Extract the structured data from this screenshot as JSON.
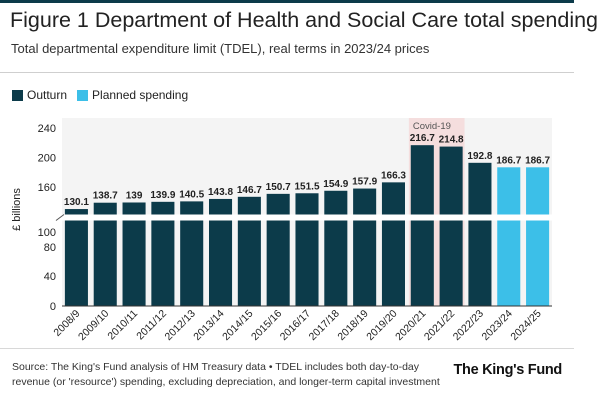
{
  "header": {
    "title": "Figure 1 Department of Health and Social Care total spending",
    "subtitle": "Total departmental expenditure limit (TDEL), real terms in 2023/24 prices"
  },
  "legend": {
    "items": [
      {
        "label": "Outturn",
        "color": "#0c3b4a"
      },
      {
        "label": "Planned spending",
        "color": "#3cbfe8"
      }
    ]
  },
  "colors": {
    "outturn": "#0c3b4a",
    "planned": "#3cbfe8",
    "plot_bg": "#f4f4f4",
    "highlight": "#f5dede"
  },
  "footer": {
    "source": "Source: The King's Fund analysis of HM Treasury data • TDEL includes both day-to-day revenue (or 'resource') spending, excluding depreciation, and longer-term capital investment",
    "logo": "The King's Fund"
  },
  "chart_data": {
    "type": "bar",
    "title": "Figure 1 Department of Health and Social Care total spending",
    "subtitle": "Total departmental expenditure limit (TDEL), real terms in 2023/24 prices",
    "ylabel": "£ billions",
    "xlabel": "",
    "yticks": [
      0,
      40,
      80,
      100,
      160,
      200,
      240
    ],
    "ylim": [
      0,
      240
    ],
    "axis_break": true,
    "grid": false,
    "legend_position": "top-left",
    "categories": [
      "2008/9",
      "2009/10",
      "2010/11",
      "2011/12",
      "2012/13",
      "2013/14",
      "2014/15",
      "2015/16",
      "2016/17",
      "2017/18",
      "2018/19",
      "2019/20",
      "2020/21",
      "2021/22",
      "2022/23",
      "2023/24",
      "2024/25"
    ],
    "values": [
      130.1,
      138.7,
      139,
      139.9,
      140.5,
      143.8,
      146.7,
      150.7,
      151.5,
      154.9,
      157.9,
      166.3,
      216.7,
      214.8,
      192.8,
      186.7,
      186.7
    ],
    "value_labels": [
      "130.1",
      "138.7",
      "139",
      "139.9",
      "140.5",
      "143.8",
      "146.7",
      "150.7",
      "151.5",
      "154.9",
      "157.9",
      "166.3",
      "216.7",
      "214.8",
      "192.8",
      "186.7",
      "186.7"
    ],
    "series": [
      {
        "name": "Outturn",
        "categories": [
          "2008/9",
          "2009/10",
          "2010/11",
          "2011/12",
          "2012/13",
          "2013/14",
          "2014/15",
          "2015/16",
          "2016/17",
          "2017/18",
          "2018/19",
          "2019/20",
          "2020/21",
          "2021/22",
          "2022/23"
        ]
      },
      {
        "name": "Planned spending",
        "categories": [
          "2023/24",
          "2024/25"
        ]
      }
    ],
    "annotations": [
      {
        "text": "Covid-19",
        "categories": [
          "2020/21",
          "2021/22"
        ]
      }
    ]
  }
}
